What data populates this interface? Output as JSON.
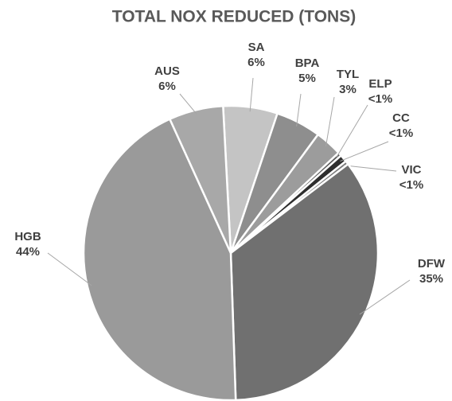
{
  "chart_data": {
    "type": "pie",
    "title": "TOTAL NOX REDUCED (TONS)",
    "categories": [
      "SA",
      "BPA",
      "TYL",
      "ELP",
      "CC",
      "VIC",
      "DFW",
      "HGB",
      "AUS"
    ],
    "values": [
      6,
      5,
      3,
      0.4,
      0.8,
      0.4,
      35,
      44,
      6
    ],
    "value_labels": [
      "6%",
      "5%",
      "3%",
      "<1%",
      "<1%",
      "<1%",
      "35%",
      "44%",
      "6%"
    ],
    "colors": [
      "#c4c4c4",
      "#8e8e8e",
      "#9c9c9c",
      "#5a5a5a",
      "#2e2e2e",
      "#7a7a7a",
      "#707070",
      "#9a9a9a",
      "#a8a8a8"
    ]
  }
}
